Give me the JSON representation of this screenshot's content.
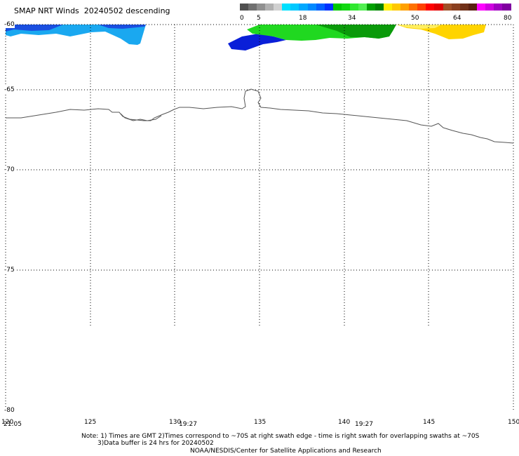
{
  "title": "SMAP NRT Winds  20240502 descending",
  "colorbar": {
    "labels": [
      "0",
      "5",
      "18",
      "34",
      "50",
      "64",
      "80"
    ],
    "segments": [
      {
        "color": "#505050"
      },
      {
        "color": "#707070"
      },
      {
        "color": "#909090"
      },
      {
        "color": "#b0b0b0"
      },
      {
        "color": "#d0d0d0"
      },
      {
        "color": "#00e0ff"
      },
      {
        "color": "#00c8ff"
      },
      {
        "color": "#00a8ff"
      },
      {
        "color": "#0088ff"
      },
      {
        "color": "#0060ff"
      },
      {
        "color": "#0030ff"
      },
      {
        "color": "#00c800"
      },
      {
        "color": "#10d810"
      },
      {
        "color": "#30e830"
      },
      {
        "color": "#50f050"
      },
      {
        "color": "#00a000"
      },
      {
        "color": "#008000"
      },
      {
        "color": "#ffee00"
      },
      {
        "color": "#ffc800"
      },
      {
        "color": "#ffa000"
      },
      {
        "color": "#ff7000"
      },
      {
        "color": "#ff4000"
      },
      {
        "color": "#ff0000"
      },
      {
        "color": "#e00000"
      },
      {
        "color": "#a05028"
      },
      {
        "color": "#8a4020"
      },
      {
        "color": "#703018"
      },
      {
        "color": "#5a2010"
      },
      {
        "color": "#ff00ff"
      },
      {
        "color": "#d000e0"
      },
      {
        "color": "#a000c0"
      },
      {
        "color": "#8000a0"
      }
    ]
  },
  "lat_labels": [
    "-60",
    "-65",
    "-70",
    "-75",
    "-80"
  ],
  "lon_labels": [
    "120",
    "125",
    "130",
    "135",
    "140",
    "145",
    "150"
  ],
  "time_labels": [
    "21:05",
    "19:27",
    "19:27"
  ],
  "notes": [
    "Note: 1) Times are GMT 2)Times correspond to ~70S at right swath edge - time is right swath for overlapping swaths at ~70S",
    "3)Data buffer is 24 hrs for 20240502",
    "NOAA/NESDIS/Center for Satellite Applications and Research"
  ],
  "colors": {
    "swath_light_blue": "#1aa8f0",
    "swath_blue": "#1a4fe0",
    "swath_dark_blue": "#0a1fd8",
    "swath_green": "#20d820",
    "swath_dark_green": "#0a9a0a",
    "swath_yellow": "#ffd400",
    "grid": "#000000",
    "coast": "#555555"
  }
}
